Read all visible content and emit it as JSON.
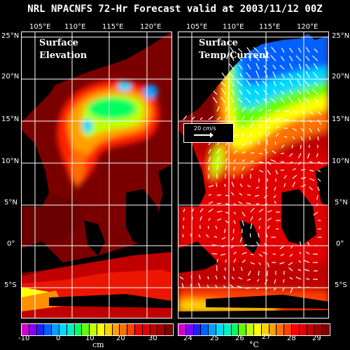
{
  "title": "NRL NPACNFS 72-Hr Forecast valid at 2003/11/12 00Z",
  "panels": {
    "left": {
      "label_line1": "Surface",
      "label_line2": "Elevation"
    },
    "right": {
      "label_line1": "Surface",
      "label_line2": "Temp/Current"
    }
  },
  "longitude_labels": [
    "105°E",
    "110°E",
    "115°E",
    "120°E"
  ],
  "latitude_labels": [
    "25°N",
    "20°N",
    "15°N",
    "10°N",
    "5°N",
    "0°",
    "5°S"
  ],
  "vector_scale": {
    "label": "20 cm/s"
  },
  "colorbars": {
    "elevation": {
      "unit": "cm",
      "ticks": [
        "-10",
        "0",
        "10",
        "20",
        "30"
      ],
      "colors": [
        "#d000d0",
        "#8000ff",
        "#2020ff",
        "#0060ff",
        "#00a0ff",
        "#00d8ff",
        "#00f0c0",
        "#00ff60",
        "#60ff00",
        "#c0ff00",
        "#ffff00",
        "#ffd000",
        "#ffa000",
        "#ff7000",
        "#ff4000",
        "#ff0000",
        "#e00000",
        "#c00000",
        "#a00000",
        "#800000"
      ]
    },
    "temperature": {
      "unit": "°C",
      "ticks": [
        "24",
        "25",
        "26",
        "27",
        "28",
        "29"
      ],
      "colors": [
        "#d000d0",
        "#8000ff",
        "#2020ff",
        "#0060ff",
        "#00a0ff",
        "#00d8ff",
        "#00f0c0",
        "#00ff60",
        "#60ff00",
        "#c0ff00",
        "#ffff00",
        "#ffd000",
        "#ffa000",
        "#ff7000",
        "#ff4000",
        "#ff0000",
        "#e00000",
        "#c00000",
        "#a00000",
        "#800000"
      ]
    }
  }
}
